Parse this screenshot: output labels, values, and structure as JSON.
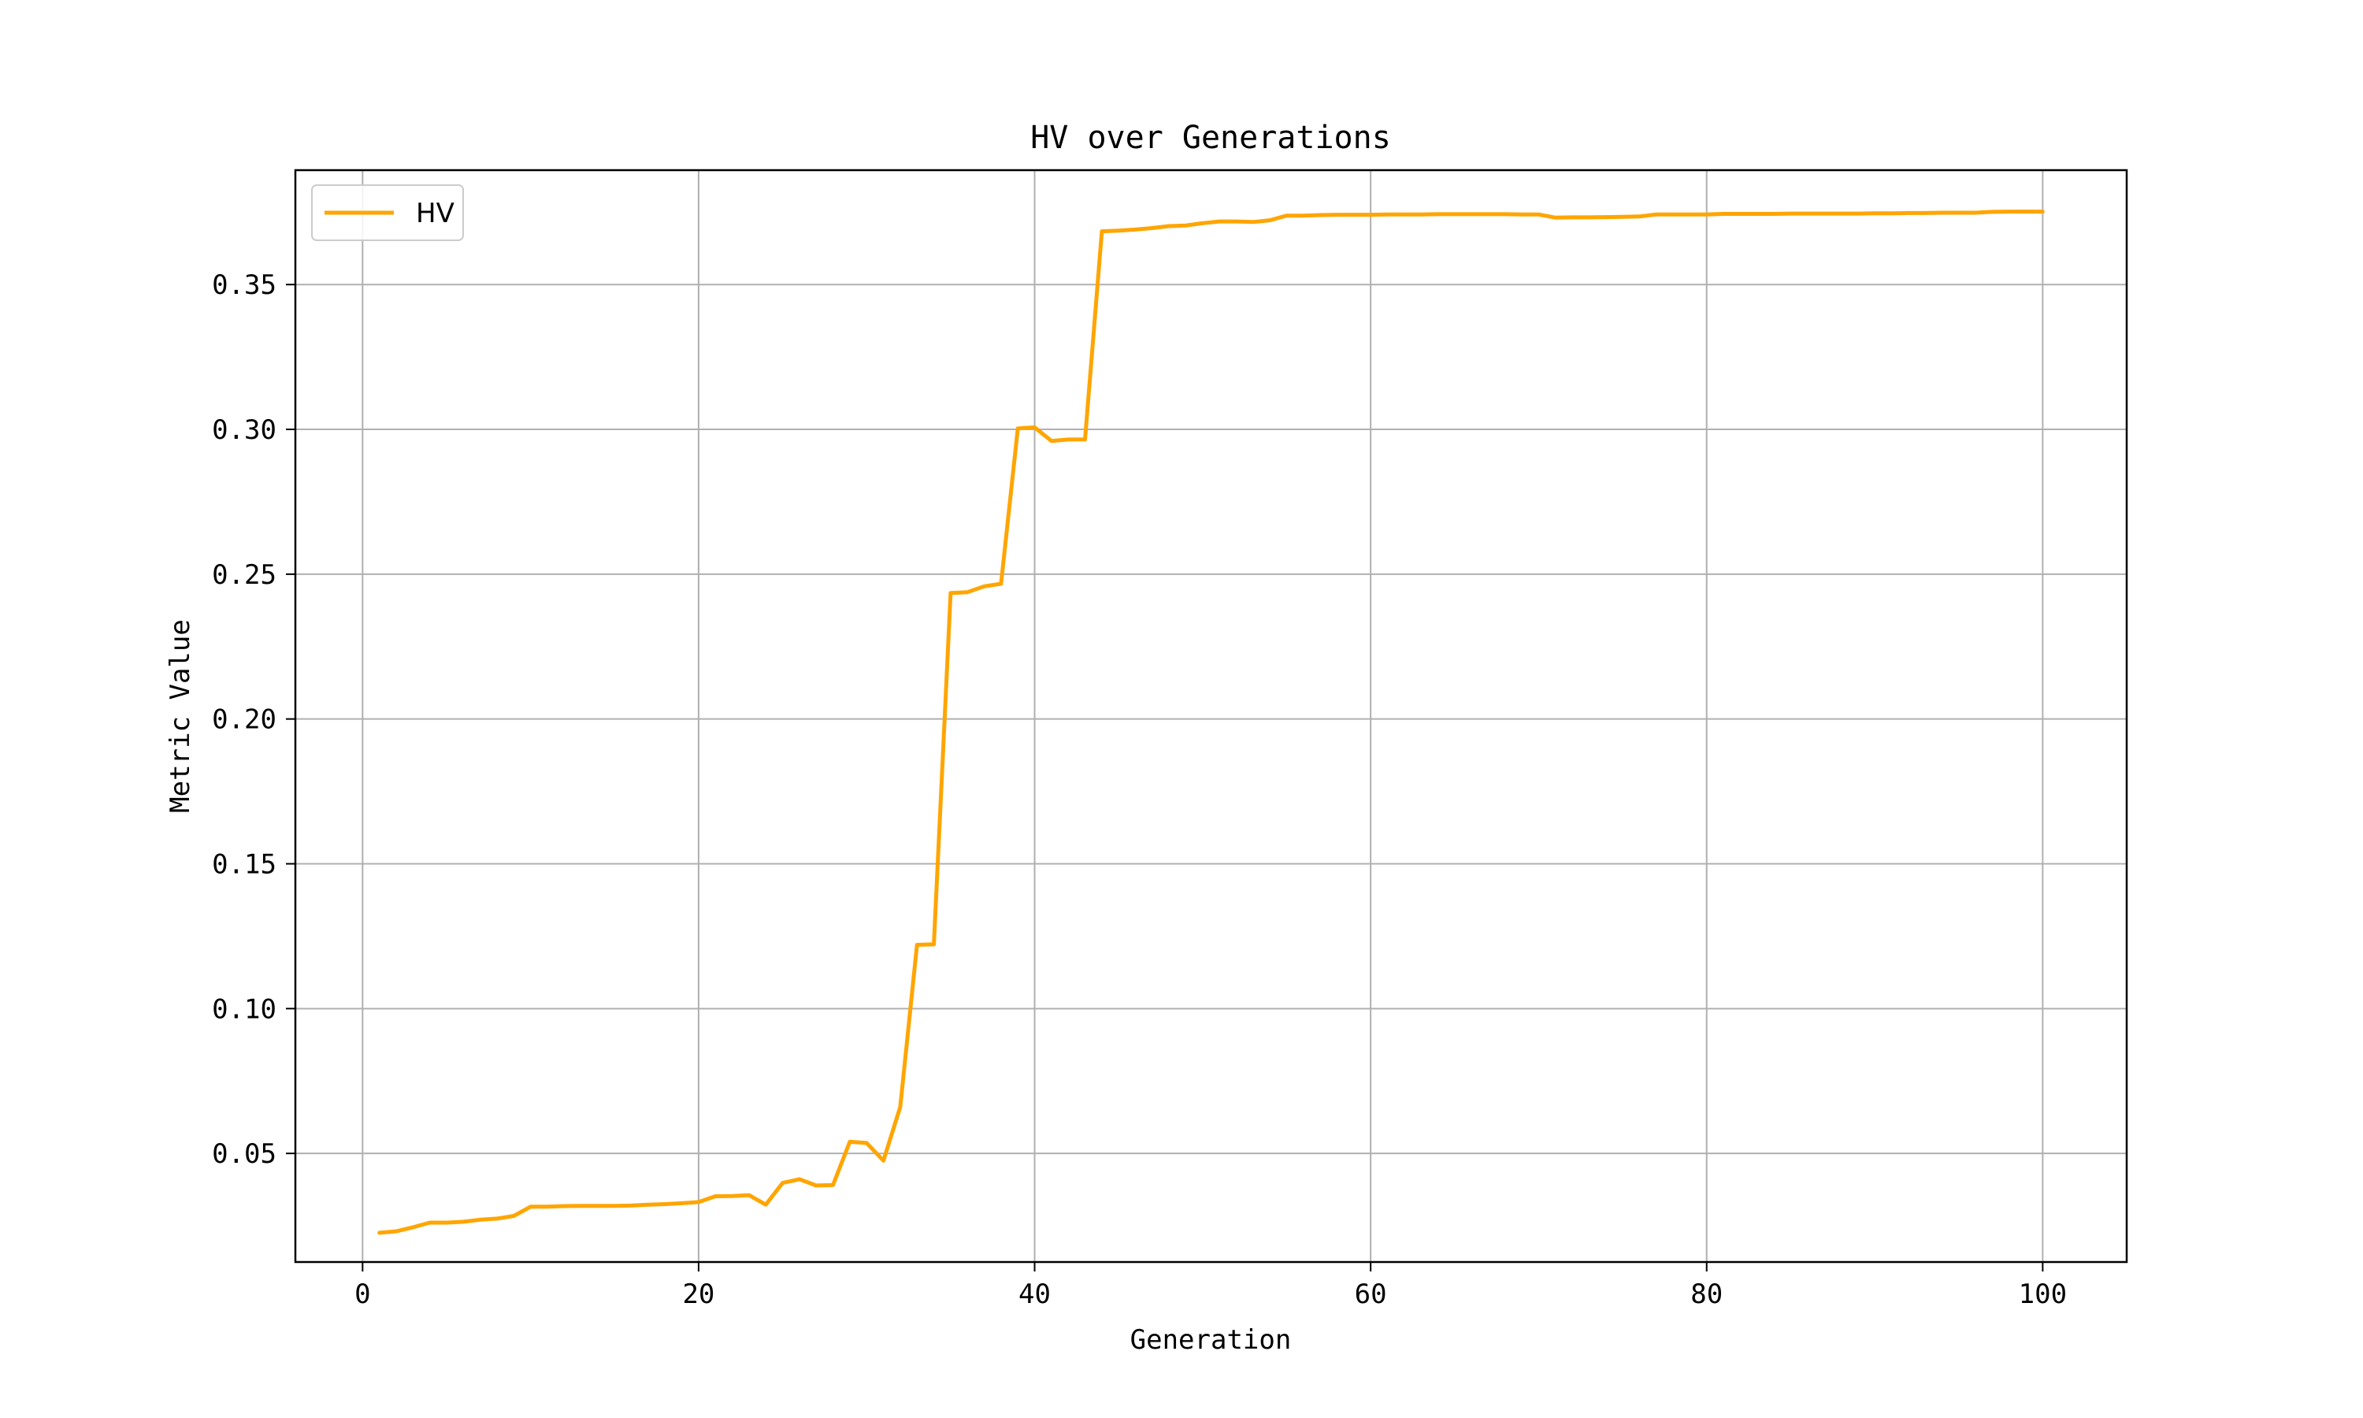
{
  "chart_data": {
    "type": "line",
    "title": "HV over Generations",
    "xlabel": "Generation",
    "ylabel": "Metric Value",
    "xlim": [
      -4,
      105
    ],
    "ylim": [
      0.0125,
      0.3895
    ],
    "xticks": [
      0,
      20,
      40,
      60,
      80,
      100
    ],
    "yticks": [
      0.05,
      0.1,
      0.15,
      0.2,
      0.25,
      0.3,
      0.35
    ],
    "xtick_labels": [
      "0",
      "20",
      "40",
      "60",
      "80",
      "100"
    ],
    "ytick_labels": [
      "0.05",
      "0.10",
      "0.15",
      "0.20",
      "0.25",
      "0.30",
      "0.35"
    ],
    "grid": true,
    "legend": {
      "position": "top-left",
      "entries": [
        "HV"
      ]
    },
    "series": [
      {
        "name": "HV",
        "color": "#ffa500",
        "x": [
          1,
          2,
          3,
          4,
          5,
          6,
          7,
          8,
          9,
          10,
          11,
          12,
          13,
          14,
          15,
          16,
          17,
          18,
          19,
          20,
          21,
          22,
          23,
          24,
          25,
          26,
          27,
          28,
          29,
          30,
          31,
          32,
          33,
          34,
          35,
          36,
          37,
          38,
          39,
          40,
          41,
          42,
          43,
          44,
          45,
          46,
          47,
          48,
          49,
          50,
          51,
          52,
          53,
          54,
          55,
          56,
          57,
          58,
          59,
          60,
          61,
          62,
          63,
          64,
          65,
          66,
          67,
          68,
          69,
          70,
          71,
          72,
          73,
          74,
          75,
          76,
          77,
          78,
          79,
          80,
          81,
          82,
          83,
          84,
          85,
          86,
          87,
          88,
          89,
          90,
          91,
          92,
          93,
          94,
          95,
          96,
          97,
          98,
          99,
          100
        ],
        "y": [
          0.0226,
          0.0231,
          0.0245,
          0.0261,
          0.0261,
          0.0264,
          0.0271,
          0.0275,
          0.0284,
          0.0316,
          0.0316,
          0.0318,
          0.0319,
          0.0319,
          0.0319,
          0.032,
          0.0323,
          0.0325,
          0.0328,
          0.0332,
          0.0352,
          0.0353,
          0.0356,
          0.0323,
          0.0398,
          0.0411,
          0.0389,
          0.0391,
          0.054,
          0.0536,
          0.0475,
          0.066,
          0.122,
          0.1222,
          0.2435,
          0.2438,
          0.2458,
          0.2467,
          0.3003,
          0.3007,
          0.296,
          0.2965,
          0.2965,
          0.3684,
          0.3686,
          0.369,
          0.3695,
          0.3702,
          0.3704,
          0.3712,
          0.3718,
          0.3718,
          0.3716,
          0.3722,
          0.3738,
          0.3738,
          0.374,
          0.3741,
          0.3741,
          0.3741,
          0.3742,
          0.3742,
          0.3742,
          0.3743,
          0.3743,
          0.3743,
          0.3743,
          0.3743,
          0.3742,
          0.3742,
          0.3731,
          0.3732,
          0.3732,
          0.3733,
          0.3734,
          0.3735,
          0.3742,
          0.3742,
          0.3742,
          0.3742,
          0.3744,
          0.3744,
          0.3744,
          0.3744,
          0.3745,
          0.3745,
          0.3745,
          0.3745,
          0.3745,
          0.3746,
          0.3746,
          0.3747,
          0.3747,
          0.3748,
          0.3748,
          0.3748,
          0.3751,
          0.3752,
          0.3752,
          0.3752
        ]
      }
    ]
  }
}
